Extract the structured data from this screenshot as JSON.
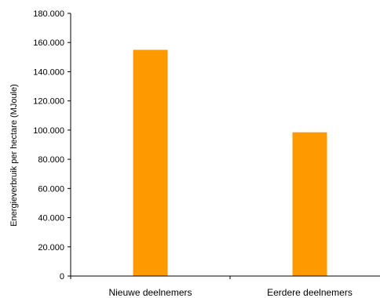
{
  "chart_data": {
    "type": "bar",
    "categories": [
      "Nieuwe deelnemers",
      "Eerdere deelnemers"
    ],
    "values": [
      155000,
      98500
    ],
    "title": "",
    "xlabel": "",
    "ylabel": "Energieverbruik per hectare (MJoule)",
    "ylim": [
      0,
      180000
    ],
    "yticks": [
      "0",
      "20.000",
      "40.000",
      "60.000",
      "80.000",
      "100.000",
      "120.000",
      "140.000",
      "160.000",
      "180.000"
    ],
    "grid": false,
    "legend": "none",
    "bar_color": "#FF9900"
  }
}
